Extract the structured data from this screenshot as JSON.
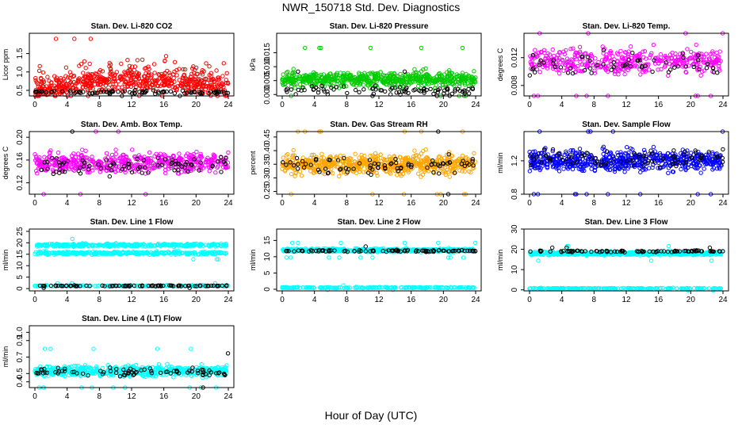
{
  "figure": {
    "title": "NWR_150718  Std. Dev. Diagnostics",
    "xlabel": "Hour of Day (UTC)"
  },
  "chart_data": [
    {
      "type": "scatter",
      "title": "Stan. Dev. Li-820 CO2",
      "ylabel": "Licor ppm",
      "xlim": [
        0,
        24
      ],
      "ylim": [
        0.35,
        2.05
      ],
      "xticks": [
        0,
        4,
        8,
        12,
        16,
        20,
        24
      ],
      "yticks": [
        {
          "v": 0.5,
          "l": "0.5"
        },
        {
          "v": 1.0,
          "l": "1.0"
        },
        {
          "v": 1.5,
          "l": "1.5"
        }
      ],
      "series": [
        {
          "color": "#ff0000",
          "n": 620,
          "base": 0.55,
          "spread": 0.3,
          "shape": "co2"
        },
        {
          "color": "#000000",
          "n": 90,
          "base": 0.45,
          "spread": 0.05,
          "shape": "flat"
        }
      ]
    },
    {
      "type": "scatter",
      "title": "Stan. Dev. Li-820 Pressure",
      "ylabel": "kPa",
      "xlim": [
        0,
        24
      ],
      "ylim": [
        -0.0005,
        0.022
      ],
      "xticks": [
        0,
        4,
        8,
        12,
        16,
        20,
        24
      ],
      "yticks": [
        {
          "v": 0,
          "l": "0.000"
        },
        {
          "v": 0.005,
          "l": "0.005"
        },
        {
          "v": 0.01,
          "l": "0.010"
        },
        {
          "v": 0.015,
          "l": "0.015"
        }
      ],
      "series": [
        {
          "color": "#00cc00",
          "n": 650,
          "base": 0.0055,
          "spread": 0.0025,
          "shape": "flat"
        },
        {
          "color": "#000000",
          "n": 90,
          "base": 0.0015,
          "spread": 0.0015,
          "shape": "flat"
        }
      ]
    },
    {
      "type": "scatter",
      "title": "Stan. Dev. Li-820 Temp.",
      "ylabel": "degrees C",
      "xlim": [
        0,
        24
      ],
      "ylim": [
        0.0065,
        0.0155
      ],
      "xticks": [
        0,
        4,
        8,
        12,
        16,
        20,
        24
      ],
      "yticks": [
        {
          "v": 0.008,
          "l": "0.008"
        },
        {
          "v": 0.012,
          "l": "0.012"
        }
      ],
      "series": [
        {
          "color": "#ff00ff",
          "n": 420,
          "base": 0.0115,
          "spread": 0.0017,
          "shape": "flat"
        },
        {
          "color": "#000000",
          "n": 60,
          "base": 0.011,
          "spread": 0.0015,
          "shape": "flat"
        }
      ]
    },
    {
      "type": "scatter",
      "title": "Stan. Dev. Amb. Box Temp.",
      "ylabel": "degrees C",
      "xlim": [
        0,
        24
      ],
      "ylim": [
        0.1,
        0.21
      ],
      "xticks": [
        0,
        4,
        8,
        12,
        16,
        20,
        24
      ],
      "yticks": [
        {
          "v": 0.12,
          "l": "0.12"
        },
        {
          "v": 0.16,
          "l": "0.16"
        },
        {
          "v": 0.2,
          "l": "0.20"
        }
      ],
      "series": [
        {
          "color": "#ff00ff",
          "n": 520,
          "base": 0.155,
          "spread": 0.017,
          "shape": "flat"
        },
        {
          "color": "#000000",
          "n": 80,
          "base": 0.15,
          "spread": 0.015,
          "shape": "flat"
        }
      ]
    },
    {
      "type": "scatter",
      "title": "Stan. Dev. Gas Stream RH",
      "ylabel": "percent",
      "xlim": [
        0,
        24
      ],
      "ylim": [
        0.24,
        0.47
      ],
      "xticks": [
        0,
        4,
        8,
        12,
        16,
        20,
        24
      ],
      "yticks": [
        {
          "v": 0.25,
          "l": "0.25"
        },
        {
          "v": 0.3,
          "l": "0.30"
        },
        {
          "v": 0.35,
          "l": "0.35"
        },
        {
          "v": 0.4,
          "l": "0.40"
        },
        {
          "v": 0.45,
          "l": "0.45"
        }
      ],
      "series": [
        {
          "color": "#ffa500",
          "n": 650,
          "base": 0.35,
          "spread": 0.035,
          "shape": "flat"
        },
        {
          "color": "#000000",
          "n": 80,
          "base": 0.345,
          "spread": 0.03,
          "shape": "flat"
        }
      ]
    },
    {
      "type": "scatter",
      "title": "Stan. Dev. Sample Flow",
      "ylabel": "ml/min",
      "xlim": [
        0,
        24
      ],
      "ylim": [
        0.8,
        1.55
      ],
      "xticks": [
        0,
        4,
        8,
        12,
        16,
        20,
        24
      ],
      "yticks": [
        {
          "v": 0.8,
          "l": "0.8"
        },
        {
          "v": 1.2,
          "l": "1.2"
        }
      ],
      "series": [
        {
          "color": "#0000ff",
          "n": 620,
          "base": 1.2,
          "spread": 0.12,
          "shape": "flat"
        },
        {
          "color": "#000000",
          "n": 80,
          "base": 1.23,
          "spread": 0.1,
          "shape": "flat"
        }
      ]
    },
    {
      "type": "scatter",
      "title": "Stan. Dev. Line 1 Flow",
      "ylabel": "ml/min",
      "xlim": [
        0,
        24
      ],
      "ylim": [
        -1,
        26
      ],
      "xticks": [
        0,
        4,
        8,
        12,
        16,
        20,
        24
      ],
      "yticks": [
        {
          "v": 0,
          "l": "0"
        },
        {
          "v": 5,
          "l": "5"
        },
        {
          "v": 10,
          "l": "10"
        },
        {
          "v": 15,
          "l": "15"
        },
        {
          "v": 20,
          "l": "20"
        },
        {
          "v": 25,
          "l": "25"
        }
      ],
      "series": [
        {
          "color": "#00ffff",
          "n": 320,
          "base": 19,
          "spread": 0.6,
          "shape": "flat"
        },
        {
          "color": "#00ffff",
          "n": 320,
          "base": 15.5,
          "spread": 0.6,
          "shape": "flat"
        },
        {
          "color": "#00ffff",
          "n": 180,
          "base": 1.2,
          "spread": 0.25,
          "shape": "flat"
        },
        {
          "color": "#000000",
          "n": 90,
          "base": 1.2,
          "spread": 0.2,
          "shape": "flat"
        }
      ]
    },
    {
      "type": "scatter",
      "title": "Stan. Dev. Line 2 Flow",
      "ylabel": "ml/min",
      "xlim": [
        0,
        24
      ],
      "ylim": [
        -0.5,
        18.5
      ],
      "xticks": [
        0,
        4,
        8,
        12,
        16,
        20,
        24
      ],
      "yticks": [
        {
          "v": 0,
          "l": "0"
        },
        {
          "v": 5,
          "l": "5"
        },
        {
          "v": 10,
          "l": "10"
        },
        {
          "v": 15,
          "l": "15"
        }
      ],
      "series": [
        {
          "color": "#00ffff",
          "n": 500,
          "base": 12,
          "spread": 0.5,
          "shape": "flat"
        },
        {
          "color": "#00ffff",
          "n": 200,
          "base": 0.5,
          "spread": 0.15,
          "shape": "flat"
        },
        {
          "color": "#000000",
          "n": 90,
          "base": 11.8,
          "spread": 0.3,
          "shape": "flat"
        }
      ]
    },
    {
      "type": "scatter",
      "title": "Stan. Dev. Line 3 Flow",
      "ylabel": "ml/min",
      "xlim": [
        0,
        24
      ],
      "ylim": [
        -0.5,
        30
      ],
      "xticks": [
        0,
        4,
        8,
        12,
        16,
        20,
        24
      ],
      "yticks": [
        {
          "v": 0,
          "l": "0"
        },
        {
          "v": 10,
          "l": "10"
        },
        {
          "v": 20,
          "l": "20"
        },
        {
          "v": 30,
          "l": "30"
        }
      ],
      "series": [
        {
          "color": "#00ffff",
          "n": 500,
          "base": 18,
          "spread": 0.8,
          "shape": "flat"
        },
        {
          "color": "#00ffff",
          "n": 200,
          "base": 0.7,
          "spread": 0.2,
          "shape": "flat"
        },
        {
          "color": "#000000",
          "n": 90,
          "base": 19,
          "spread": 0.4,
          "shape": "flat"
        }
      ]
    },
    {
      "type": "scatter",
      "title": "Stan. Dev. Line 4 (LT) Flow",
      "ylabel": "ml/min",
      "xlim": [
        0,
        24
      ],
      "ylim": [
        0.33,
        1.08
      ],
      "xticks": [
        0,
        4,
        8,
        12,
        16,
        20,
        24
      ],
      "yticks": [
        {
          "v": 0.4,
          "l": "0.4"
        },
        {
          "v": 0.5,
          "l": "0.5"
        },
        {
          "v": 0.7,
          "l": "0.7"
        },
        {
          "v": 0.9,
          "l": "0.9"
        },
        {
          "v": 1.0,
          "l": "1.0"
        }
      ],
      "series": [
        {
          "color": "#00ffff",
          "n": 560,
          "base": 0.53,
          "spread": 0.06,
          "shape": "flat"
        },
        {
          "color": "#000000",
          "n": 80,
          "base": 0.52,
          "spread": 0.05,
          "shape": "flat"
        }
      ]
    }
  ]
}
